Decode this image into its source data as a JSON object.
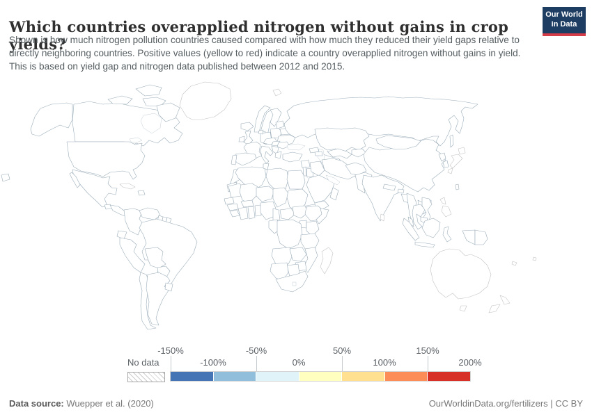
{
  "header": {
    "title": "Which countries overapplied nitrogen without gains in crop yields?",
    "subtitle": "Shown is how much nitrogen pollution countries caused compared with how much they reduced their yield gaps relative to directly neighboring countries. Positive values (yellow to red) indicate a country overapplied nitrogen without gains in yield. This is based on yield gap and nitrogen data published between 2012 and 2015.",
    "logo": {
      "line1": "Our World",
      "line2": "in Data",
      "bg_color": "#1d3d63",
      "accent_color": "#d63c47"
    }
  },
  "legend": {
    "no_data_label": "No data",
    "tick_labels": [
      "-150%",
      "-100%",
      "-50%",
      "0%",
      "50%",
      "100%",
      "150%",
      "200%"
    ],
    "bins": [
      {
        "label": "-150% to -100%",
        "color": "#4575b4"
      },
      {
        "label": "-100% to -50%",
        "color": "#91bfdb"
      },
      {
        "label": "-50% to 0%",
        "color": "#e0f3f8"
      },
      {
        "label": "0% to 50%",
        "color": "#ffffbf"
      },
      {
        "label": "50% to 100%",
        "color": "#fee090"
      },
      {
        "label": "100% to 150%",
        "color": "#fc8d59"
      },
      {
        "label": "150% to 200%",
        "color": "#d73027"
      }
    ]
  },
  "footer": {
    "source_label": "Data source:",
    "source_text": " Wuepper et al. (2020)",
    "credit": "OurWorldinData.org/fertilizers | CC BY"
  },
  "map": {
    "ocean_color": "#ffffff",
    "border_color": "#9aacb9",
    "no_data_border": "#c2c2c2",
    "country_colors": {
      "alaska": "#91bfdb",
      "canada": "#e0f3f8",
      "arctic_islands": "#e0f3f8",
      "greenland": "no-data",
      "usa": "#91bfdb",
      "mexico": "#fc8d59",
      "guatemala": "#ffffbf",
      "central_america": "#e0f3f8",
      "cuba": "no-data",
      "hispaniola": "#ffffbf",
      "colombia": "#fee090",
      "venezuela": "#91bfdb",
      "guyana": "#ffffbf",
      "suriname": "#e0f3f8",
      "french_guiana": "#e0f3f8",
      "ecuador": "#fee090",
      "peru": "#ffffbf",
      "brazil": "#fc8d59",
      "bolivia": "#91bfdb",
      "paraguay": "#fee090",
      "chile": "#fee090",
      "argentina": "#91bfdb",
      "uruguay": "#e0f3f8",
      "iceland": "#e0f3f8",
      "ireland": "#e0f3f8",
      "uk": "#e0f3f8",
      "norway": "#e0f3f8",
      "sweden": "#e0f3f8",
      "finland": "#e0f3f8",
      "denmark": "#e0f3f8",
      "germany": "#e0f3f8",
      "netherlands": "#fc8d59",
      "france": "#e0f3f8",
      "spain": "#ffffbf",
      "portugal": "#fee090",
      "italy": "#e0f3f8",
      "poland": "#74add1",
      "baltics": "#e0f3f8",
      "belarus": "#e0f3f8",
      "ukraine": "#e0f3f8",
      "czechia_austria": "#fee090",
      "hungary": "#ffffbf",
      "romania": "#ffffbf",
      "balkans": "#e0f3f8",
      "greece": "#e0f3f8",
      "turkey": "#ffffbf",
      "georgia": "#fc8d59",
      "azerbaijan": "#e0f3f8",
      "svalbard": "no-data",
      "russia": "#91bfdb",
      "sakhalin": "#e0f3f8",
      "kazakhstan": "#4575b4",
      "uzbekistan": "#e0f3f8",
      "turkmenistan": "#ffffbf",
      "kyrgyzstan": "#91bfdb",
      "syria": "#ffffbf",
      "israel": "#fc8d59",
      "jordan": "#fee090",
      "iraq": "#91bfdb",
      "saudi_arabia": "#ffffbf",
      "yemen": "#e0f3f8",
      "oman": "#e0f3f8",
      "iran": "#ffffbf",
      "afghanistan": "#91bfdb",
      "pakistan": "#e0f3f8",
      "india": "#e0f3f8",
      "nepal": "#e0f3f8",
      "bhutan": "#4575b4",
      "bangladesh": "#fc8d59",
      "sri_lanka": "no-data",
      "myanmar": "#cfe2ed",
      "thailand": "#fc8d59",
      "laos": "#4575b4",
      "vietnam": "#91bfdb",
      "cambodia": "#91bfdb",
      "malaysia": "#ffffbf",
      "china": "#d73027",
      "mongolia": "#4575b4",
      "hainan": "#d73027",
      "taiwan": "#e0f3f8",
      "north_korea": "#fee090",
      "south_korea": "#e0f3f8",
      "japan": "no-data",
      "philippines": "no-data",
      "indonesia": "#ffffbf",
      "papua_new_guinea": "#e0f3f8",
      "australia": "no-data",
      "new_zealand": "no-data",
      "new_caledonia": "no-data",
      "fiji": "no-data",
      "pacific_sliver": "#91bfdb",
      "morocco": "#ffffbf",
      "western_sahara": "#e0f3f8",
      "algeria": "#e0f3f8",
      "tunisia": "#ffffbf",
      "libya": "#e0f3f8",
      "egypt": "#e0f3f8",
      "mauritania": "#e0f3f8",
      "mali": "#ffffbf",
      "niger": "#ffffbf",
      "chad": "#ffffbf",
      "sudan": "#ffffbf",
      "eritrea": "#e0f3f8",
      "senegal": "#fee090",
      "guinea": "#fee090",
      "sierra_leone_liberia": "#e0f3f8",
      "ivory_coast": "#fc8d59",
      "ghana": "#91bfdb",
      "burkina_faso": "#ffffbf",
      "togo_benin": "#ffffbf",
      "nigeria": "#ffffbf",
      "cameroon": "#ffffbf",
      "central_african_republic": "#91bfdb",
      "south_sudan": "#e0f3f8",
      "ethiopia": "#e0f3f8",
      "somalia": "#e0f3f8",
      "kenya": "#e0f3f8",
      "uganda": "#e0f3f8",
      "tanzania": "#ffffbf",
      "gabon_congo": "#e0f3f8",
      "drc": "#e0f3f8",
      "angola": "#e0f3f8",
      "zambia": "#ffffbf",
      "mozambique": "#ffffbf",
      "zimbabwe": "#e0f3f8",
      "botswana": "#ffffbf",
      "namibia": "#e0f3f8",
      "south_africa": "#ffffbf",
      "madagascar": "no-data"
    }
  }
}
